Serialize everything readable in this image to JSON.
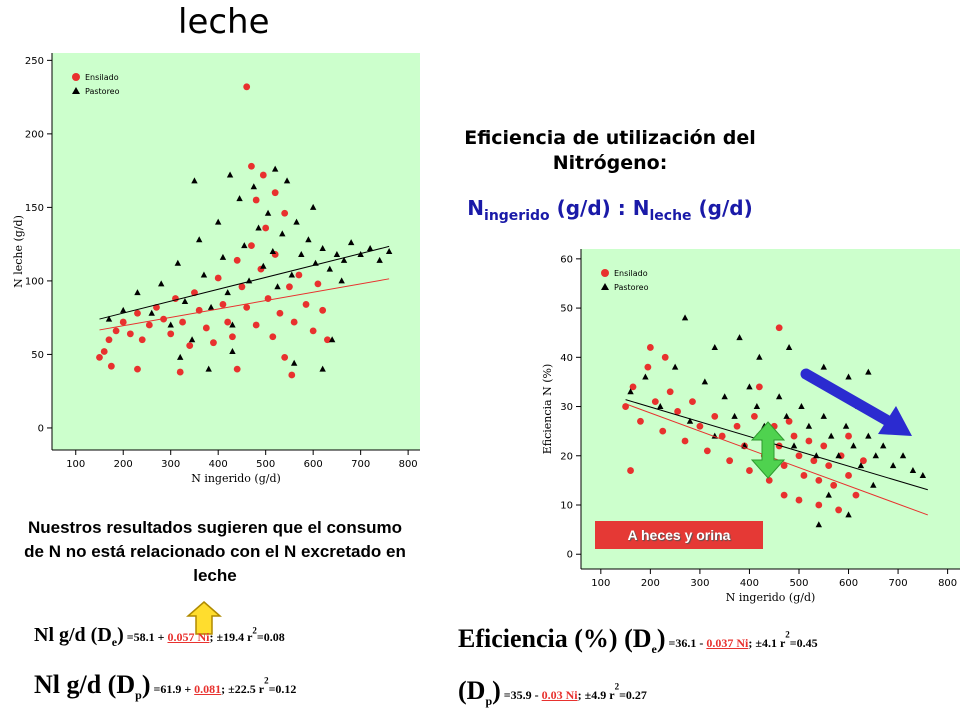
{
  "title": "leche",
  "heading_line1": "Eficiencia de utilización del",
  "heading_line2": "Nitrógeno:",
  "ratio": {
    "n1": "N",
    "s1": "ingerido",
    "m": " (g/d) : N",
    "s2": "leche",
    "e": " (g/d)"
  },
  "conclusion": "Nuestros resultados sugieren que el consumo de N no está relacionado con el N excretado en leche",
  "heces_label": "A heces y orina",
  "equations": {
    "eq1": {
      "a": "Nl g/d (D",
      "sub": "e",
      "b": ")",
      "c": " =58.1 + ",
      "red": "0.057 Ni",
      "d": "; ±19.4 r",
      "sup": "2",
      "e": "=0.08"
    },
    "eq2": {
      "a": "Nl  g/d (D",
      "sub": "p",
      "b": ")",
      "c": " =61.9 + ",
      "red": "0.081",
      "d": "; ±22.5 r",
      "sup": "2",
      "e": "=0.12"
    },
    "eq3": {
      "a": "Eficiencia (%) (D",
      "sub": "e",
      "b": ")",
      "c": " =36.1 - ",
      "red": "0.037 Ni",
      "d": "; ±4.1 r",
      "sup": "2",
      "e": "=0.45"
    },
    "eq4": {
      "a": "(D",
      "sub": "p",
      "b": ")",
      "c": " =35.9 - ",
      "red": "0.03 Ni",
      "d": "; ±4.9 r",
      "sup": "2",
      "e": "=0.27"
    }
  },
  "colors": {
    "panel_bg": "#ccffcc",
    "ensilado": "#e8312e",
    "pastoreo": "#000000",
    "arrow_blue": "#2b2bd0",
    "arrow_green": "#4fd24f",
    "arrow_yellow": "#ffdd2e",
    "heces_bg": "#e53935"
  },
  "chart_data": [
    {
      "type": "scatter",
      "xlabel": "N ingerido (g/d)",
      "ylabel": "N leche (g/d)",
      "xlim": [
        50,
        825
      ],
      "ylim": [
        -15,
        255
      ],
      "x_ticks": [
        100,
        200,
        300,
        400,
        500,
        600,
        700,
        800
      ],
      "y_ticks": [
        0,
        50,
        100,
        150,
        200,
        250
      ],
      "legend": "top-left",
      "grid": false,
      "series": [
        {
          "name": "Ensilado",
          "marker": "circle",
          "points": [
            [
              150,
              48
            ],
            [
              160,
              52
            ],
            [
              170,
              60
            ],
            [
              185,
              66
            ],
            [
              200,
              72
            ],
            [
              215,
              64
            ],
            [
              230,
              78
            ],
            [
              240,
              60
            ],
            [
              255,
              70
            ],
            [
              270,
              82
            ],
            [
              285,
              74
            ],
            [
              300,
              64
            ],
            [
              310,
              88
            ],
            [
              325,
              72
            ],
            [
              340,
              56
            ],
            [
              350,
              92
            ],
            [
              360,
              80
            ],
            [
              375,
              68
            ],
            [
              390,
              58
            ],
            [
              400,
              102
            ],
            [
              410,
              84
            ],
            [
              420,
              72
            ],
            [
              430,
              62
            ],
            [
              440,
              114
            ],
            [
              450,
              96
            ],
            [
              460,
              82
            ],
            [
              470,
              124
            ],
            [
              480,
              70
            ],
            [
              490,
              108
            ],
            [
              500,
              136
            ],
            [
              505,
              88
            ],
            [
              515,
              62
            ],
            [
              520,
              118
            ],
            [
              530,
              78
            ],
            [
              540,
              146
            ],
            [
              550,
              96
            ],
            [
              560,
              72
            ],
            [
              570,
              104
            ],
            [
              585,
              84
            ],
            [
              600,
              66
            ],
            [
              610,
              98
            ],
            [
              620,
              80
            ],
            [
              630,
              60
            ],
            [
              175,
              42
            ],
            [
              230,
              40
            ],
            [
              320,
              38
            ],
            [
              440,
              40
            ],
            [
              480,
              155
            ],
            [
              470,
              178
            ],
            [
              495,
              172
            ],
            [
              460,
              232
            ],
            [
              540,
              48
            ],
            [
              555,
              36
            ],
            [
              520,
              160
            ]
          ]
        },
        {
          "name": "Pastoreo",
          "marker": "triangle",
          "points": [
            [
              170,
              74
            ],
            [
              200,
              80
            ],
            [
              230,
              92
            ],
            [
              260,
              78
            ],
            [
              280,
              98
            ],
            [
              300,
              70
            ],
            [
              315,
              112
            ],
            [
              330,
              86
            ],
            [
              345,
              60
            ],
            [
              360,
              128
            ],
            [
              370,
              104
            ],
            [
              385,
              82
            ],
            [
              400,
              140
            ],
            [
              410,
              116
            ],
            [
              420,
              92
            ],
            [
              430,
              70
            ],
            [
              445,
              156
            ],
            [
              455,
              124
            ],
            [
              465,
              100
            ],
            [
              475,
              164
            ],
            [
              485,
              136
            ],
            [
              495,
              110
            ],
            [
              505,
              146
            ],
            [
              515,
              120
            ],
            [
              525,
              96
            ],
            [
              535,
              132
            ],
            [
              545,
              168
            ],
            [
              555,
              104
            ],
            [
              565,
              140
            ],
            [
              575,
              118
            ],
            [
              590,
              128
            ],
            [
              605,
              112
            ],
            [
              620,
              122
            ],
            [
              635,
              108
            ],
            [
              650,
              118
            ],
            [
              665,
              114
            ],
            [
              680,
              126
            ],
            [
              700,
              118
            ],
            [
              720,
              122
            ],
            [
              740,
              114
            ],
            [
              760,
              120
            ],
            [
              320,
              48
            ],
            [
              380,
              40
            ],
            [
              430,
              52
            ],
            [
              560,
              44
            ],
            [
              620,
              40
            ],
            [
              640,
              60
            ],
            [
              350,
              168
            ],
            [
              425,
              172
            ],
            [
              520,
              176
            ],
            [
              600,
              150
            ],
            [
              660,
              100
            ]
          ]
        }
      ],
      "fit_lines": [
        {
          "series": "Ensilado",
          "intercept": 58.1,
          "slope": 0.057,
          "x": [
            150,
            760
          ]
        },
        {
          "series": "Pastoreo",
          "intercept": 61.9,
          "slope": 0.081,
          "x": [
            150,
            760
          ]
        }
      ]
    },
    {
      "type": "scatter",
      "xlabel": "N ingerido (g/d)",
      "ylabel": "Eficiencia N (%)",
      "xlim": [
        60,
        825
      ],
      "ylim": [
        -3,
        62
      ],
      "x_ticks": [
        100,
        200,
        300,
        400,
        500,
        600,
        700,
        800
      ],
      "y_ticks": [
        0,
        10,
        20,
        30,
        40,
        50,
        60
      ],
      "legend": "top-left",
      "grid": false,
      "series": [
        {
          "name": "Ensilado",
          "marker": "circle",
          "points": [
            [
              150,
              30
            ],
            [
              165,
              34
            ],
            [
              180,
              27
            ],
            [
              195,
              38
            ],
            [
              210,
              31
            ],
            [
              225,
              25
            ],
            [
              240,
              33
            ],
            [
              255,
              29
            ],
            [
              270,
              23
            ],
            [
              285,
              31
            ],
            [
              300,
              26
            ],
            [
              315,
              21
            ],
            [
              330,
              28
            ],
            [
              345,
              24
            ],
            [
              360,
              19
            ],
            [
              375,
              26
            ],
            [
              390,
              22
            ],
            [
              400,
              17
            ],
            [
              410,
              28
            ],
            [
              420,
              24
            ],
            [
              430,
              20
            ],
            [
              440,
              15
            ],
            [
              450,
              26
            ],
            [
              460,
              22
            ],
            [
              470,
              18
            ],
            [
              480,
              27
            ],
            [
              490,
              24
            ],
            [
              500,
              20
            ],
            [
              510,
              16
            ],
            [
              520,
              23
            ],
            [
              530,
              19
            ],
            [
              540,
              15
            ],
            [
              550,
              22
            ],
            [
              560,
              18
            ],
            [
              570,
              14
            ],
            [
              585,
              20
            ],
            [
              600,
              16
            ],
            [
              615,
              12
            ],
            [
              630,
              19
            ],
            [
              200,
              42
            ],
            [
              230,
              40
            ],
            [
              160,
              17
            ],
            [
              460,
              46
            ],
            [
              500,
              11
            ],
            [
              540,
              10
            ],
            [
              580,
              9
            ],
            [
              470,
              12
            ],
            [
              420,
              34
            ],
            [
              600,
              24
            ]
          ]
        },
        {
          "name": "Pastoreo",
          "marker": "triangle",
          "points": [
            [
              160,
              33
            ],
            [
              190,
              36
            ],
            [
              220,
              30
            ],
            [
              250,
              38
            ],
            [
              280,
              27
            ],
            [
              310,
              35
            ],
            [
              330,
              24
            ],
            [
              350,
              32
            ],
            [
              370,
              28
            ],
            [
              390,
              22
            ],
            [
              400,
              34
            ],
            [
              415,
              30
            ],
            [
              430,
              26
            ],
            [
              445,
              24
            ],
            [
              460,
              32
            ],
            [
              475,
              28
            ],
            [
              490,
              22
            ],
            [
              505,
              30
            ],
            [
              520,
              26
            ],
            [
              535,
              20
            ],
            [
              550,
              28
            ],
            [
              565,
              24
            ],
            [
              580,
              20
            ],
            [
              595,
              26
            ],
            [
              610,
              22
            ],
            [
              625,
              18
            ],
            [
              640,
              24
            ],
            [
              655,
              20
            ],
            [
              670,
              22
            ],
            [
              690,
              18
            ],
            [
              710,
              20
            ],
            [
              730,
              17
            ],
            [
              750,
              16
            ],
            [
              270,
              48
            ],
            [
              330,
              42
            ],
            [
              380,
              44
            ],
            [
              420,
              40
            ],
            [
              480,
              42
            ],
            [
              550,
              38
            ],
            [
              600,
              36
            ],
            [
              640,
              37
            ],
            [
              650,
              14
            ],
            [
              560,
              12
            ],
            [
              600,
              8
            ],
            [
              540,
              6
            ],
            [
              620,
              30
            ]
          ]
        }
      ],
      "fit_lines": [
        {
          "series": "Ensilado",
          "intercept": 36.1,
          "slope": -0.037,
          "x": [
            150,
            760
          ]
        },
        {
          "series": "Pastoreo",
          "intercept": 35.9,
          "slope": -0.03,
          "x": [
            150,
            760
          ]
        }
      ]
    }
  ]
}
